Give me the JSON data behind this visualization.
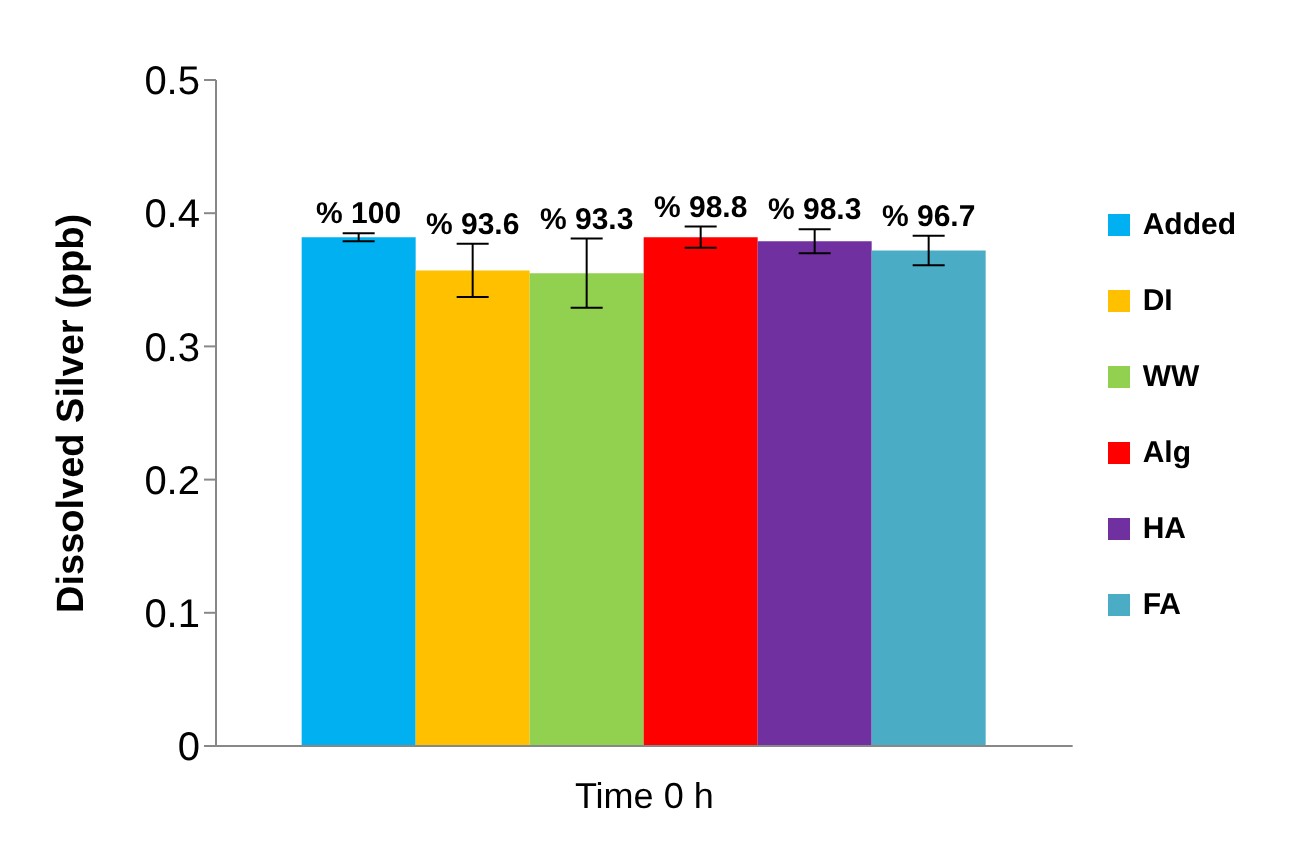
{
  "chart_data": {
    "type": "bar",
    "categories": [
      "Time 0 h"
    ],
    "ylabel": "Dissolved Silver (ppb)",
    "series": [
      {
        "name": "Added",
        "color": "#00b0f0",
        "values": [
          0.382
        ],
        "errors": [
          0.003
        ]
      },
      {
        "name": "DI",
        "color": "#ffc000",
        "values": [
          0.357
        ],
        "errors": [
          0.02
        ]
      },
      {
        "name": "WW",
        "color": "#92d050",
        "values": [
          0.355
        ],
        "errors": [
          0.026
        ]
      },
      {
        "name": "Alg",
        "color": "#ff0000",
        "values": [
          0.382
        ],
        "errors": [
          0.008
        ]
      },
      {
        "name": "HA",
        "color": "#7030a0",
        "values": [
          0.379
        ],
        "errors": [
          0.009
        ]
      },
      {
        "name": "FA",
        "color": "#4bacc6",
        "values": [
          0.372
        ],
        "errors": [
          0.011
        ]
      }
    ],
    "annotations": [
      "% 100",
      "% 93.6",
      "% 93.3",
      "% 98.8",
      "% 98.3",
      "% 96.7"
    ],
    "ylim": [
      0,
      0.5
    ],
    "yticks": [
      0,
      0.1,
      0.2,
      0.3,
      0.4,
      0.5
    ],
    "grid": false,
    "legend": "right"
  }
}
